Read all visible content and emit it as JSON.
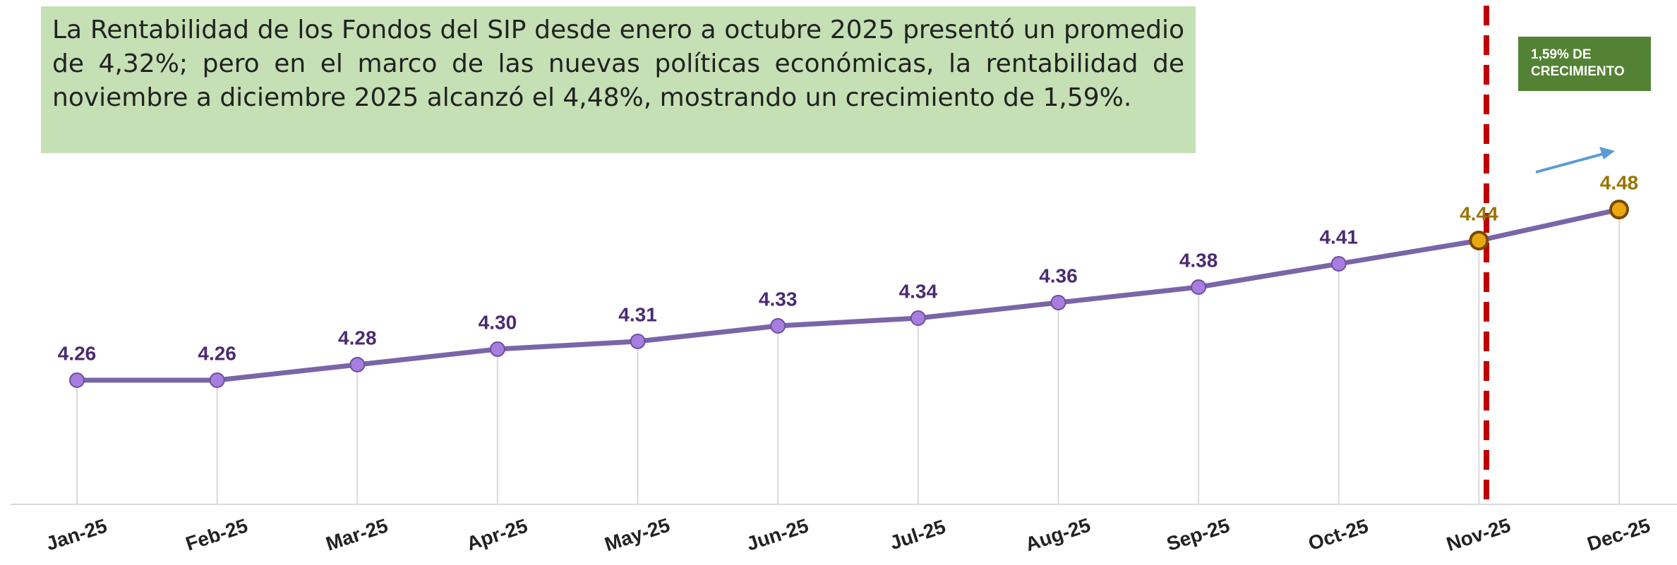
{
  "chart_data": {
    "type": "line",
    "note_text": "La Rentabilidad de los Fondos del SIP desde enero a octubre 2025 presentó un promedio de 4,32%; pero en el marco de las nuevas políticas económicas, la rentabilidad de noviembre a diciembre 2025 alcanzó el 4,48%, mostrando un crecimiento de 1,59%.",
    "annotation": [
      "1,59% DE",
      "CRECIMIENTO"
    ],
    "categories": [
      "Jan-25",
      "Feb-25",
      "Mar-25",
      "Apr-25",
      "May-25",
      "Jun-25",
      "Jul-25",
      "Aug-25",
      "Sep-25",
      "Oct-25",
      "Nov-25",
      "Dec-25"
    ],
    "values": [
      4.26,
      4.26,
      4.28,
      4.3,
      4.31,
      4.33,
      4.34,
      4.36,
      4.38,
      4.41,
      4.44,
      4.48
    ],
    "value_labels": [
      "4.26",
      "4.26",
      "4.28",
      "4.30",
      "4.31",
      "4.33",
      "4.34",
      "4.36",
      "4.38",
      "4.41",
      "4.44",
      "4.48"
    ],
    "color": "#7a65a8",
    "point_colors": [
      "#7a65a8",
      "#7a65a8",
      "#7a65a8",
      "#7a65a8",
      "#7a65a8",
      "#7a65a8",
      "#7a65a8",
      "#7a65a8",
      "#7a65a8",
      "#7a65a8",
      "#c99a06",
      "#c99a06"
    ],
    "ylim": [
      4.1,
      4.75
    ]
  }
}
